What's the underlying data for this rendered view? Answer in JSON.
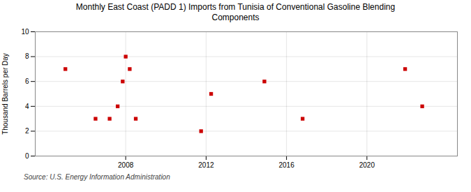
{
  "chart_data": {
    "type": "scatter",
    "title": "Monthly East Coast (PADD 1) Imports from Tunisia of Conventional Gasoline Blending\nComponents",
    "ylabel": "Thousand Barrels per Day",
    "source": "Source: U.S. Energy Information Administration",
    "x": [
      2005.0,
      2006.5,
      2007.2,
      2007.6,
      2007.85,
      2008.0,
      2008.2,
      2008.5,
      2011.75,
      2012.25,
      2014.9,
      2016.8,
      2021.9,
      2022.75
    ],
    "values": [
      7,
      3,
      3,
      4,
      6,
      8,
      7,
      3,
      2,
      5,
      6,
      3,
      7,
      4
    ],
    "color": "#cc0000",
    "marker": "square",
    "xlim": [
      2003.5,
      2024.5
    ],
    "ylim": [
      0,
      10
    ],
    "xticks": [
      2008,
      2012,
      2016,
      2020
    ],
    "yticks": [
      0,
      2,
      4,
      6,
      8,
      10
    ],
    "grid": true
  }
}
